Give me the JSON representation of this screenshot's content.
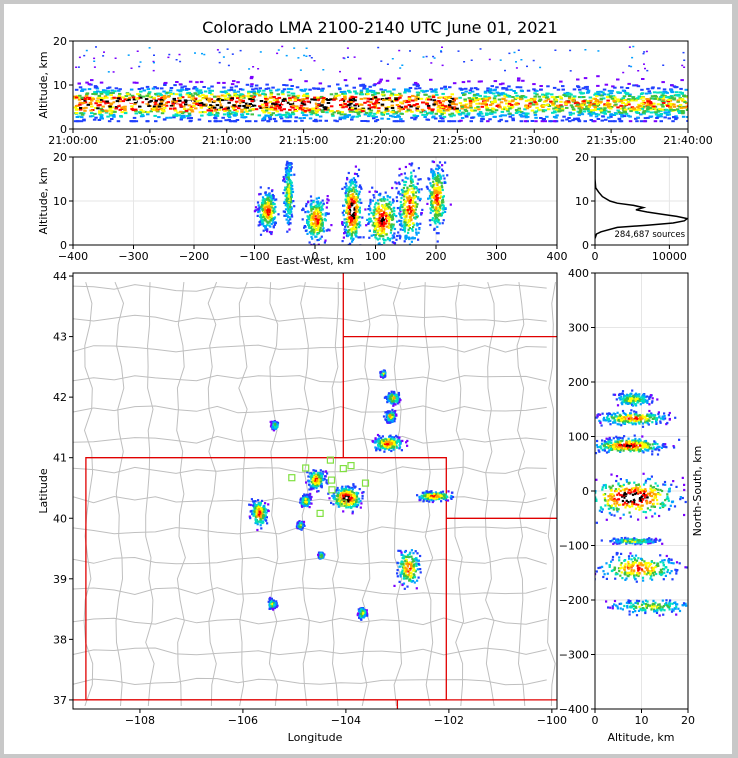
{
  "title": "Colorado LMA 2100-2140 UTC June 01, 2021",
  "colors": {
    "boundary_state": "#e00000",
    "boundary_county": "#bfbfbf",
    "station_marker": "#80e040",
    "density_scale": [
      "#7a00ff",
      "#2040ff",
      "#00a0ff",
      "#00e0c0",
      "#40c040",
      "#ffff00",
      "#ffa000",
      "#ff0000",
      "#000000",
      "#ffffff"
    ]
  },
  "chart_data": [
    {
      "id": "time-height",
      "type": "heatmap",
      "title": "Colorado LMA 2100-2140 UTC June 01, 2021",
      "xlabel": "",
      "ylabel": "Altitude, km",
      "x_tick_labels": [
        "21:00:00",
        "21:05:00",
        "21:10:00",
        "21:15:00",
        "21:20:00",
        "21:25:00",
        "21:30:00",
        "21:35:00",
        "21:40:00"
      ],
      "x_range_minutes": [
        0,
        40
      ],
      "y_ticks": [
        0,
        10,
        20
      ],
      "ylim": [
        0,
        20
      ],
      "source_band_altitude_km": [
        2,
        13
      ],
      "peak_density_altitude_km": 6
    },
    {
      "id": "ew-height",
      "type": "heatmap",
      "xlabel": "East-West, km",
      "ylabel": "Altitude, km",
      "x_ticks": [
        -400,
        -300,
        -200,
        -100,
        0,
        100,
        200,
        300,
        400
      ],
      "xlim": [
        -400,
        400
      ],
      "y_ticks": [
        0,
        10,
        20
      ],
      "ylim": [
        0,
        20
      ],
      "cells": [
        {
          "x": -80,
          "alt": 8,
          "w": 25,
          "h": 7,
          "strength": 0.6
        },
        {
          "x": -45,
          "alt": 12,
          "w": 12,
          "h": 12,
          "strength": 0.4
        },
        {
          "x": 0,
          "alt": 6,
          "w": 30,
          "h": 8,
          "strength": 0.6
        },
        {
          "x": 60,
          "alt": 8,
          "w": 24,
          "h": 12,
          "strength": 1.0
        },
        {
          "x": 110,
          "alt": 6,
          "w": 40,
          "h": 10,
          "strength": 0.8
        },
        {
          "x": 155,
          "alt": 9,
          "w": 30,
          "h": 14,
          "strength": 0.7
        },
        {
          "x": 200,
          "alt": 11,
          "w": 25,
          "h": 12,
          "strength": 0.6
        }
      ]
    },
    {
      "id": "altitude-histogram",
      "type": "line",
      "xlabel": "",
      "ylabel": "",
      "x_ticks": [
        0,
        10000
      ],
      "xlim": [
        0,
        12500
      ],
      "y_ticks": [
        0,
        10,
        20
      ],
      "ylim": [
        0,
        20
      ],
      "annotation": "284,687 sources",
      "altitude_km": [
        1.5,
        2.5,
        3.0,
        4.0,
        4.5,
        5.0,
        5.5,
        6.0,
        6.5,
        7.0,
        7.5,
        8.0,
        8.5,
        9.0,
        9.5,
        10.0,
        11.0,
        12.0,
        13.0,
        15.0,
        20.0
      ],
      "sources": [
        0,
        200,
        800,
        3000,
        7000,
        10500,
        12000,
        12400,
        11000,
        9000,
        7000,
        5500,
        6500,
        5200,
        3000,
        2000,
        1000,
        500,
        100,
        0,
        0
      ]
    },
    {
      "id": "plan-view",
      "type": "heatmap",
      "xlabel": "Longitude",
      "ylabel": "Latitude",
      "x_ticks": [
        -108,
        -106,
        -104,
        -102,
        -100
      ],
      "xlim": [
        -109.3,
        -99.9
      ],
      "y_ticks": [
        37,
        38,
        39,
        40,
        41,
        42,
        43,
        44
      ],
      "ylim": [
        36.85,
        44.05
      ],
      "cells": [
        {
          "lon": -105.7,
          "lat": 40.1,
          "w": 0.25,
          "h": 0.35,
          "strength": 0.6
        },
        {
          "lon": -104.6,
          "lat": 40.65,
          "w": 0.25,
          "h": 0.25,
          "strength": 0.6
        },
        {
          "lon": -104.0,
          "lat": 40.35,
          "w": 0.45,
          "h": 0.3,
          "strength": 1.0
        },
        {
          "lon": -103.2,
          "lat": 41.25,
          "w": 0.45,
          "h": 0.2,
          "strength": 0.7
        },
        {
          "lon": -103.1,
          "lat": 42.0,
          "w": 0.2,
          "h": 0.15,
          "strength": 0.5
        },
        {
          "lon": -103.15,
          "lat": 41.7,
          "w": 0.15,
          "h": 0.15,
          "strength": 0.5
        },
        {
          "lon": -102.8,
          "lat": 39.2,
          "w": 0.35,
          "h": 0.5,
          "strength": 0.6
        },
        {
          "lon": -102.3,
          "lat": 40.38,
          "w": 0.55,
          "h": 0.12,
          "strength": 0.6
        },
        {
          "lon": -104.8,
          "lat": 40.3,
          "w": 0.15,
          "h": 0.15,
          "strength": 0.5
        },
        {
          "lon": -105.4,
          "lat": 41.55,
          "w": 0.1,
          "h": 0.1,
          "strength": 0.4
        },
        {
          "lon": -105.45,
          "lat": 38.6,
          "w": 0.12,
          "h": 0.12,
          "strength": 0.4
        },
        {
          "lon": -103.7,
          "lat": 38.45,
          "w": 0.12,
          "h": 0.15,
          "strength": 0.4
        },
        {
          "lon": -103.3,
          "lat": 42.4,
          "w": 0.08,
          "h": 0.08,
          "strength": 0.3
        },
        {
          "lon": -104.5,
          "lat": 39.4,
          "w": 0.08,
          "h": 0.08,
          "strength": 0.3
        },
        {
          "lon": -104.9,
          "lat": 39.9,
          "w": 0.1,
          "h": 0.1,
          "strength": 0.3
        }
      ],
      "stations": [
        {
          "lon": -105.05,
          "lat": 40.67
        },
        {
          "lon": -104.78,
          "lat": 40.83
        },
        {
          "lon": -104.3,
          "lat": 40.96
        },
        {
          "lon": -104.05,
          "lat": 40.82
        },
        {
          "lon": -103.9,
          "lat": 40.87
        },
        {
          "lon": -104.28,
          "lat": 40.63
        },
        {
          "lon": -104.27,
          "lat": 40.47
        },
        {
          "lon": -103.62,
          "lat": 40.58
        },
        {
          "lon": -104.05,
          "lat": 40.25
        },
        {
          "lon": -104.5,
          "lat": 40.08
        }
      ]
    },
    {
      "id": "ns-height",
      "type": "heatmap",
      "xlabel": "Altitude, km",
      "ylabel": "North-South, km",
      "x_ticks": [
        0,
        10,
        20
      ],
      "xlim": [
        0,
        20
      ],
      "y_ticks": [
        -400,
        -300,
        -200,
        -100,
        0,
        100,
        200,
        300,
        400
      ],
      "ylim": [
        -400,
        400
      ],
      "cells": [
        {
          "alt": 8,
          "y": 170,
          "w": 6,
          "h": 20,
          "strength": 0.4
        },
        {
          "alt": 8,
          "y": 135,
          "w": 12,
          "h": 18,
          "strength": 0.6
        },
        {
          "alt": 7,
          "y": 85,
          "w": 12,
          "h": 22,
          "strength": 0.8
        },
        {
          "alt": 8,
          "y": -10,
          "w": 16,
          "h": 55,
          "strength": 1.0
        },
        {
          "alt": 8,
          "y": -90,
          "w": 8,
          "h": 8,
          "strength": 0.3
        },
        {
          "alt": 9,
          "y": -140,
          "w": 14,
          "h": 40,
          "strength": 0.6
        },
        {
          "alt": 12,
          "y": -210,
          "w": 14,
          "h": 20,
          "strength": 0.3
        }
      ]
    }
  ]
}
